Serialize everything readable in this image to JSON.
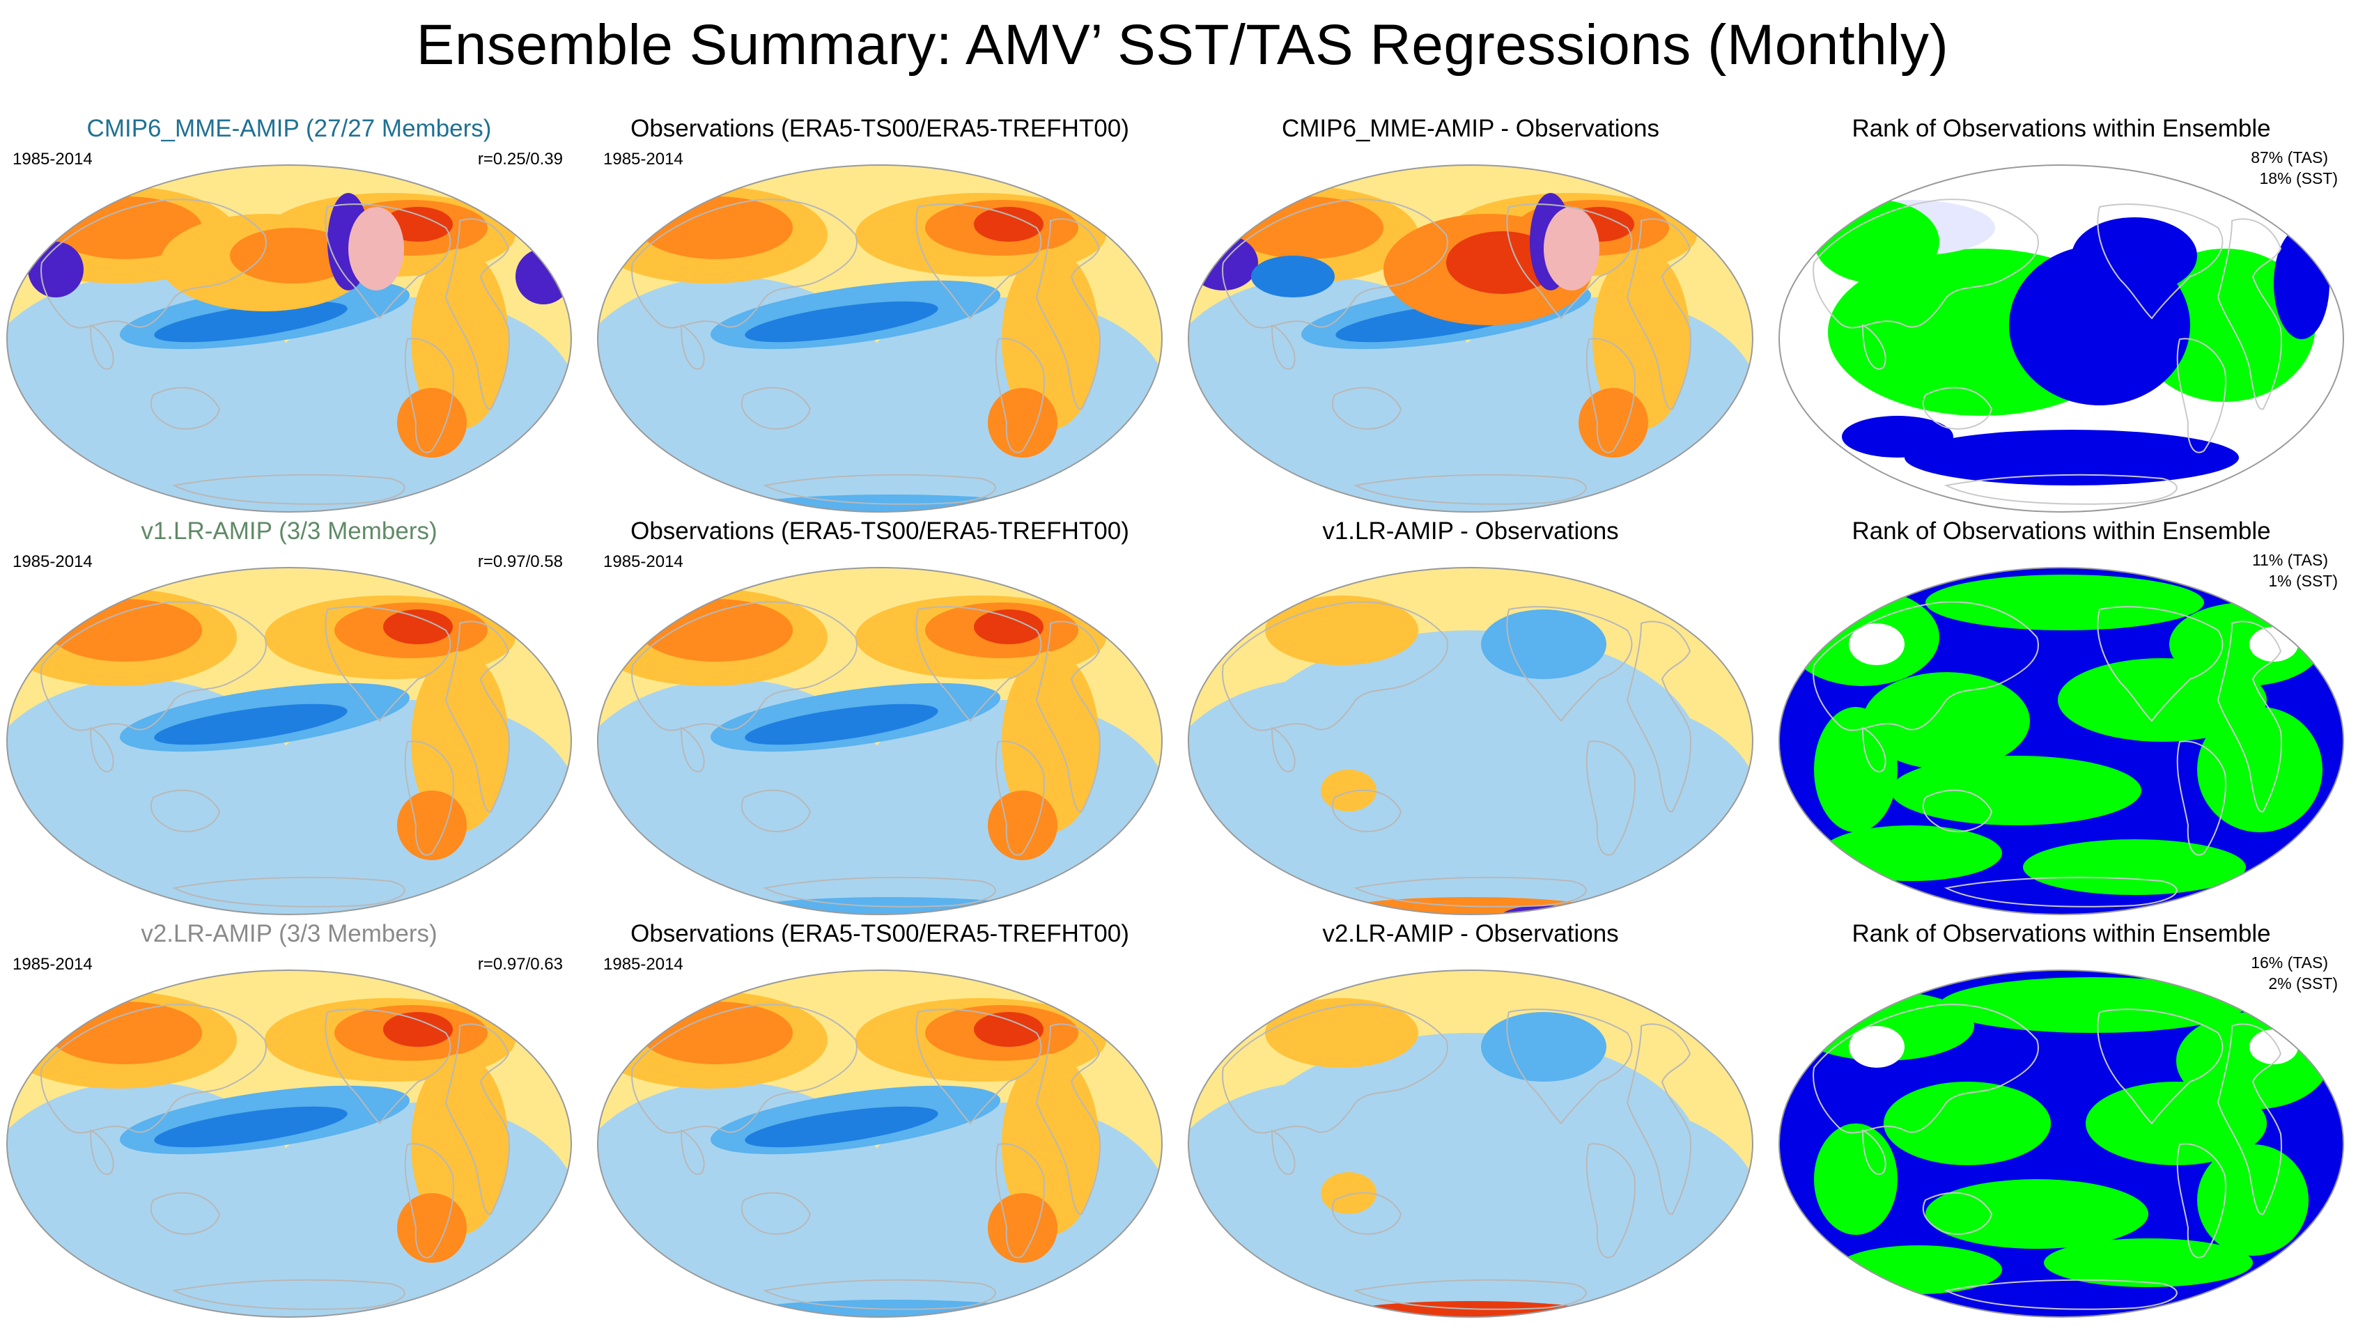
{
  "title": "Ensemble Summary: AMV’ SST/TAS Regressions (Monthly)",
  "colors": {
    "ocean_neutral": "#ffe88c",
    "cool_light": "#a9d4ef",
    "cool_mid": "#5ab2ee",
    "cool_deep": "#1e7fe0",
    "warm_light": "#ffc23a",
    "warm_mid": "#ff8a1e",
    "warm_deep": "#e83a0d",
    "extreme_warm": "#f2b6b6",
    "extreme_cool": "#4a22c8",
    "rank_high": "#0000e6",
    "rank_low": "#00ff00",
    "rank_light": "#e6e8ff",
    "coast": "#b8b8b8"
  },
  "rows": [
    {
      "model": {
        "title": "CMIP6_MME-AMIP (27/27 Members)",
        "title_color": "#1f7193",
        "period": "1985-2014",
        "r": "r=0.25/0.39"
      },
      "obs": {
        "title": "Observations (ERA5-TS00/ERA5-TREFHT00)",
        "period": "1985-2014"
      },
      "diff": {
        "title": "CMIP6_MME-AMIP - Observations"
      },
      "rank": {
        "title": "Rank of Observations within Ensemble",
        "tas": "87% (TAS)",
        "sst": "18% (SST)"
      }
    },
    {
      "model": {
        "title": "v1.LR-AMIP (3/3 Members)",
        "title_color": "#5f8a66",
        "period": "1985-2014",
        "r": "r=0.97/0.58"
      },
      "obs": {
        "title": "Observations (ERA5-TS00/ERA5-TREFHT00)",
        "period": "1985-2014"
      },
      "diff": {
        "title": "v1.LR-AMIP - Observations"
      },
      "rank": {
        "title": "Rank of Observations within Ensemble",
        "tas": "11% (TAS)",
        "sst": "1% (SST)"
      }
    },
    {
      "model": {
        "title": "v2.LR-AMIP (3/3 Members)",
        "title_color": "#8a8a8a",
        "period": "1985-2014",
        "r": "r=0.97/0.63"
      },
      "obs": {
        "title": "Observations (ERA5-TS00/ERA5-TREFHT00)",
        "period": "1985-2014"
      },
      "diff": {
        "title": "v2.LR-AMIP - Observations"
      },
      "rank": {
        "title": "Rank of Observations within Ensemble",
        "tas": "16% (TAS)",
        "sst": "2% (SST)"
      }
    }
  ]
}
